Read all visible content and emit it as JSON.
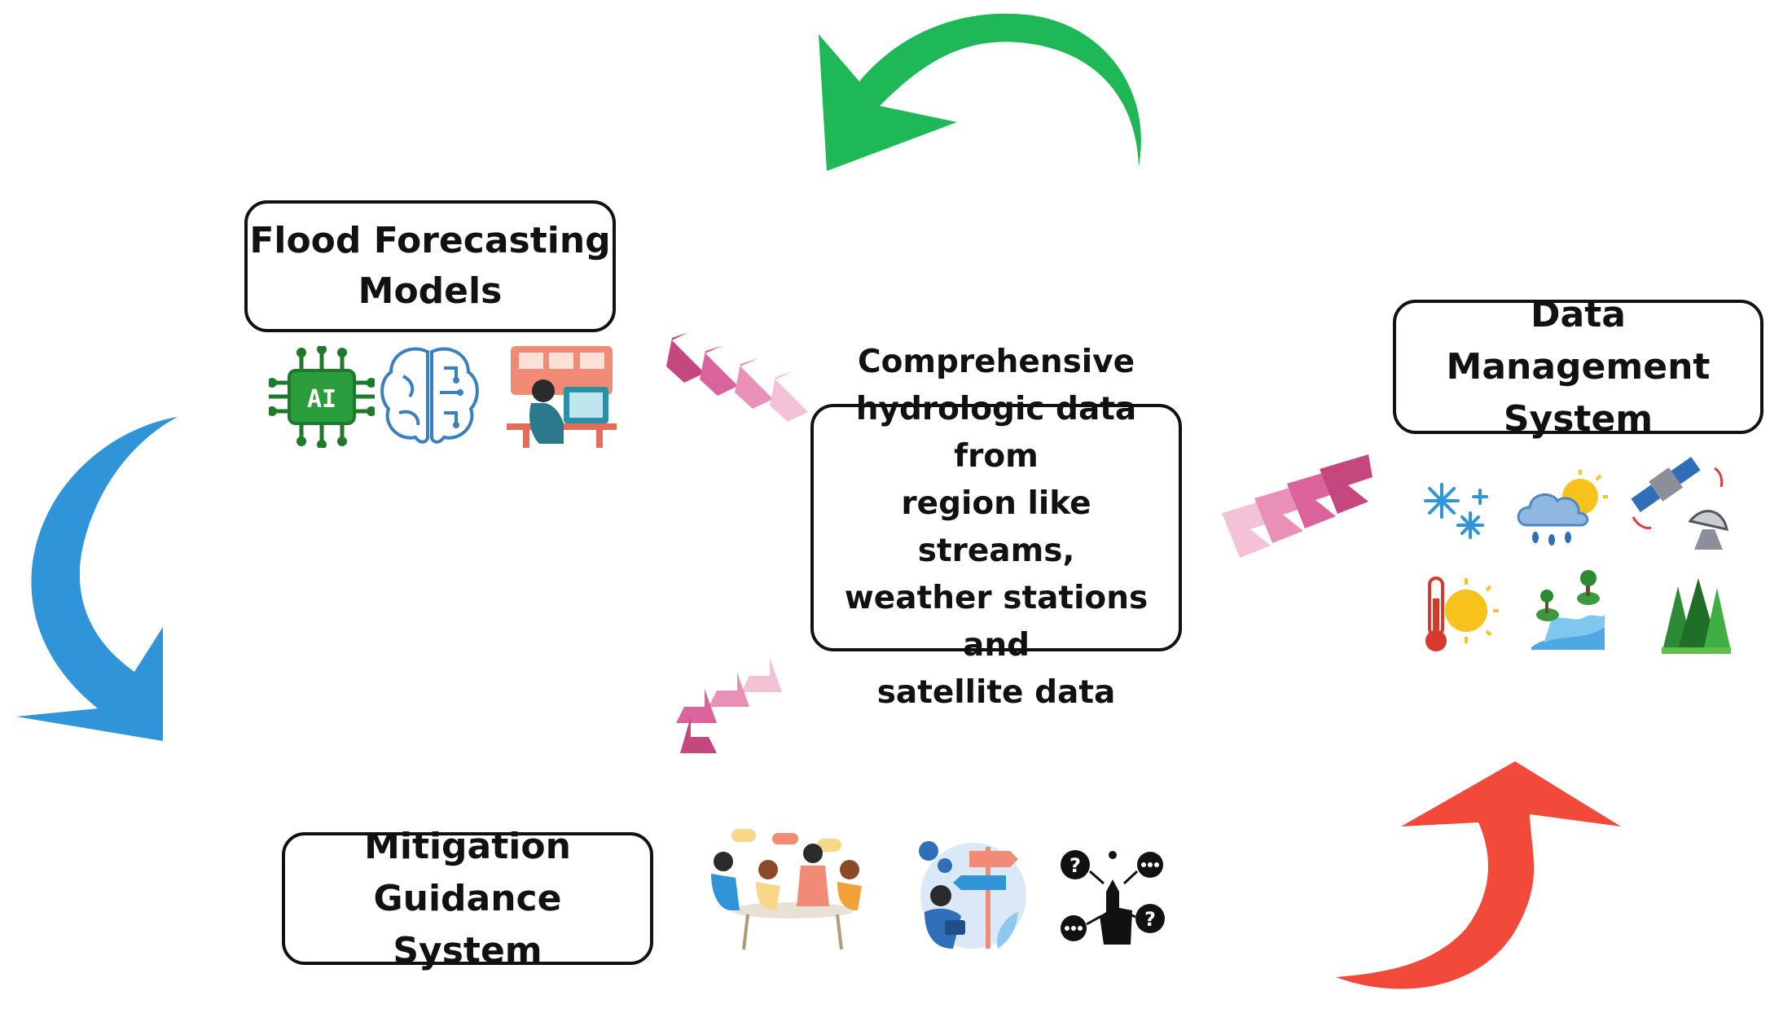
{
  "nodes": {
    "flood": {
      "line1": "Flood Forecasting",
      "line2": "Models"
    },
    "data_management": {
      "line1": "Data Management",
      "line2": "System"
    },
    "mitigation": {
      "line1": "Mitigation Guidance",
      "line2": "System"
    },
    "center": {
      "line1": "Comprehensive",
      "line2": "hydrologic data from",
      "line3": "region like streams,",
      "line4": "weather stations and",
      "line5": "satellite data"
    }
  },
  "icons": {
    "ai_chip_label": "AI"
  },
  "colors": {
    "cycle_arrow_top": "#1fb856",
    "cycle_arrow_left": "#2f95d8",
    "cycle_arrow_bottom_right": "#f14a3a",
    "chevron_dark": "#c4477e",
    "chevron_mid": "#e07aa6",
    "chevron_light": "#f4c2d6"
  }
}
